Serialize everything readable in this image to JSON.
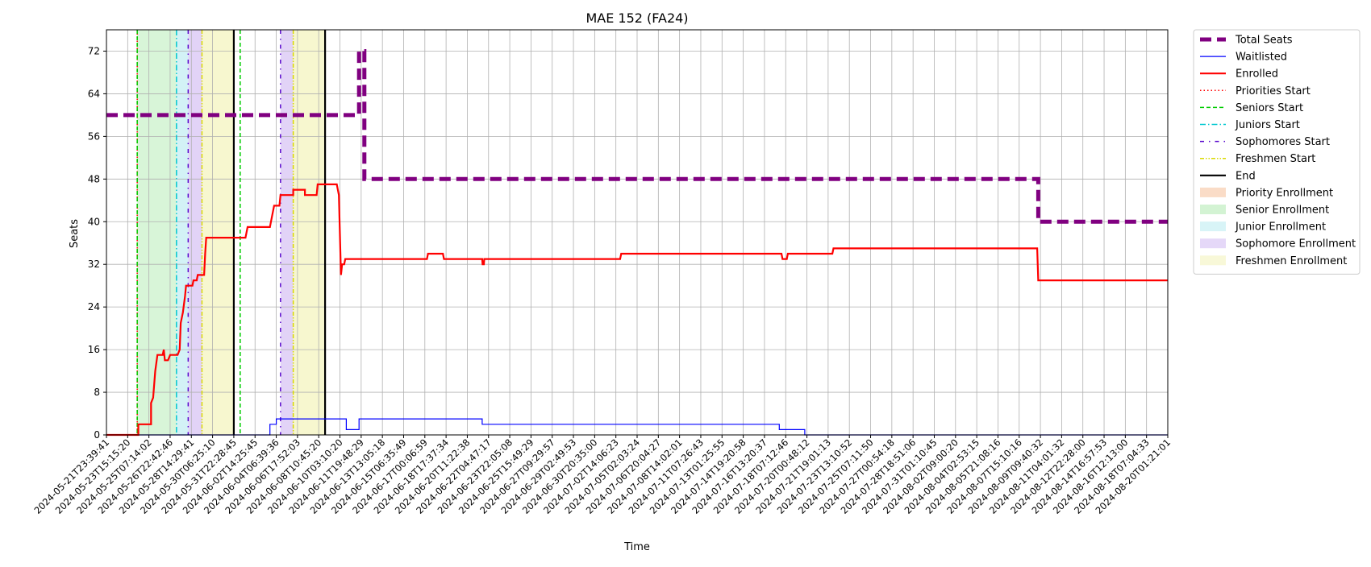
{
  "chart_data": {
    "type": "line",
    "title": "MAE 152 (FA24)",
    "xlabel": "Time",
    "ylabel": "Seats",
    "ylim": [
      0,
      76
    ],
    "yticks": [
      0,
      8,
      16,
      24,
      32,
      40,
      48,
      56,
      64,
      72
    ],
    "grid": true,
    "legend_position": "outside-right",
    "x_tick_labels": [
      "2024-05-21T23:39:41",
      "2024-05-23T15:15:20",
      "2024-05-25T07:14:02",
      "2024-05-26T22:42:46",
      "2024-05-28T14:29:41",
      "2024-05-30T06:25:10",
      "2024-05-31T22:28:45",
      "2024-06-02T14:25:45",
      "2024-06-04T06:39:36",
      "2024-06-06T17:52:03",
      "2024-06-08T10:45:20",
      "2024-06-10T03:10:20",
      "2024-06-11T19:48:29",
      "2024-06-13T13:05:18",
      "2024-06-15T06:35:49",
      "2024-06-17T00:06:59",
      "2024-06-18T17:37:34",
      "2024-06-20T11:22:38",
      "2024-06-22T04:47:17",
      "2024-06-23T22:05:08",
      "2024-06-25T15:49:29",
      "2024-06-27T09:29:57",
      "2024-06-29T02:49:53",
      "2024-06-30T20:35:00",
      "2024-07-02T14:06:23",
      "2024-07-05T02:03:24",
      "2024-07-06T20:04:27",
      "2024-07-08T14:02:01",
      "2024-07-11T07:26:43",
      "2024-07-13T01:25:55",
      "2024-07-14T19:20:58",
      "2024-07-16T13:20:37",
      "2024-07-18T07:12:46",
      "2024-07-20T00:48:12",
      "2024-07-21T19:01:13",
      "2024-07-23T13:10:52",
      "2024-07-25T07:11:50",
      "2024-07-27T00:54:18",
      "2024-07-28T18:51:06",
      "2024-07-31T01:10:45",
      "2024-08-02T09:00:20",
      "2024-08-04T02:53:15",
      "2024-08-05T21:08:16",
      "2024-08-07T15:10:16",
      "2024-08-09T09:40:32",
      "2024-08-11T04:01:32",
      "2024-08-12T22:28:00",
      "2024-08-14T16:57:53",
      "2024-08-16T12:13:00",
      "2024-08-18T07:04:33",
      "2024-08-20T01:21:01"
    ],
    "x_index_range": [
      0,
      50
    ],
    "series": [
      {
        "name": "Total Seats",
        "color": "#800080",
        "style": "dashed-thick",
        "points": [
          [
            0,
            60
          ],
          [
            11.9,
            60
          ],
          [
            11.9,
            72
          ],
          [
            12.15,
            72
          ],
          [
            12.15,
            48
          ],
          [
            43.9,
            48
          ],
          [
            43.9,
            40
          ],
          [
            50,
            40
          ]
        ]
      },
      {
        "name": "Waitlisted",
        "color": "#0000ff",
        "style": "solid-thin",
        "points": [
          [
            0,
            0
          ],
          [
            7.7,
            0
          ],
          [
            7.7,
            2
          ],
          [
            8.0,
            2
          ],
          [
            8.0,
            3
          ],
          [
            11.3,
            3
          ],
          [
            11.3,
            1
          ],
          [
            11.9,
            1
          ],
          [
            11.9,
            3
          ],
          [
            17.7,
            3
          ],
          [
            17.7,
            2
          ],
          [
            31.7,
            2
          ],
          [
            31.7,
            1
          ],
          [
            32.9,
            1
          ],
          [
            32.9,
            0
          ],
          [
            50,
            0
          ]
        ]
      },
      {
        "name": "Enrolled",
        "color": "#ff0000",
        "style": "solid",
        "points": [
          [
            0,
            0
          ],
          [
            1.5,
            0
          ],
          [
            1.5,
            2
          ],
          [
            2.1,
            2
          ],
          [
            2.1,
            6
          ],
          [
            2.2,
            7
          ],
          [
            2.3,
            12
          ],
          [
            2.4,
            15
          ],
          [
            2.65,
            15
          ],
          [
            2.7,
            16
          ],
          [
            2.75,
            14
          ],
          [
            2.9,
            14
          ],
          [
            3.0,
            15
          ],
          [
            3.35,
            15
          ],
          [
            3.45,
            16
          ],
          [
            3.5,
            21
          ],
          [
            3.6,
            23
          ],
          [
            3.7,
            26
          ],
          [
            3.75,
            28
          ],
          [
            4.05,
            28
          ],
          [
            4.1,
            29
          ],
          [
            4.25,
            29
          ],
          [
            4.3,
            30
          ],
          [
            4.6,
            30
          ],
          [
            4.65,
            34
          ],
          [
            4.7,
            37
          ],
          [
            6.45,
            37
          ],
          [
            6.55,
            37
          ],
          [
            6.65,
            39
          ],
          [
            7.7,
            39
          ],
          [
            7.8,
            41
          ],
          [
            7.9,
            43
          ],
          [
            8.15,
            43
          ],
          [
            8.2,
            45
          ],
          [
            8.8,
            45
          ],
          [
            8.8,
            46
          ],
          [
            9.35,
            46
          ],
          [
            9.35,
            45
          ],
          [
            9.9,
            45
          ],
          [
            9.95,
            47
          ],
          [
            10.85,
            47
          ],
          [
            10.95,
            45
          ],
          [
            11.05,
            30
          ],
          [
            11.1,
            32
          ],
          [
            11.2,
            32
          ],
          [
            11.25,
            33
          ],
          [
            15.1,
            33
          ],
          [
            15.15,
            34
          ],
          [
            15.85,
            34
          ],
          [
            15.9,
            33
          ],
          [
            17.7,
            33
          ],
          [
            17.72,
            32
          ],
          [
            17.78,
            32
          ],
          [
            17.8,
            33
          ],
          [
            24.2,
            33
          ],
          [
            24.25,
            34
          ],
          [
            31.8,
            34
          ],
          [
            31.85,
            33
          ],
          [
            32.05,
            33
          ],
          [
            32.1,
            34
          ],
          [
            34.2,
            34
          ],
          [
            34.25,
            35
          ],
          [
            43.85,
            35
          ],
          [
            43.9,
            29
          ],
          [
            50,
            29
          ]
        ]
      }
    ],
    "vertical_markers": [
      {
        "name": "Priorities Start",
        "color": "#ff0000",
        "style": "dotted",
        "x": [
          1.45
        ]
      },
      {
        "name": "Seniors Start",
        "color": "#00cc00",
        "style": "dashed",
        "x": [
          1.45,
          6.3
        ]
      },
      {
        "name": "Juniors Start",
        "color": "#00c8d0",
        "style": "dashdot",
        "x": [
          3.3
        ]
      },
      {
        "name": "Sophomores Start",
        "color": "#5a0acd",
        "style": "loose-dashdot",
        "x": [
          3.85,
          8.2
        ]
      },
      {
        "name": "Freshmen Start",
        "color": "#d9d900",
        "style": "dashdot-dot",
        "x": [
          4.5,
          8.8
        ]
      },
      {
        "name": "End",
        "color": "#000000",
        "style": "solid",
        "x": [
          6.0,
          10.3
        ]
      }
    ],
    "shaded_periods": [
      {
        "name": "Priority Enrollment",
        "color": "#f4b183",
        "opacity": 0.4,
        "ranges": []
      },
      {
        "name": "Senior Enrollment",
        "color": "#9ee59e",
        "opacity": 0.4,
        "ranges": [
          [
            1.45,
            3.3
          ]
        ]
      },
      {
        "name": "Junior Enrollment",
        "color": "#a8e6ee",
        "opacity": 0.5,
        "ranges": [
          [
            3.3,
            3.85
          ]
        ]
      },
      {
        "name": "Sophomore Enrollment",
        "color": "#c6a8f0",
        "opacity": 0.5,
        "ranges": [
          [
            3.85,
            4.5
          ],
          [
            8.2,
            8.8
          ]
        ]
      },
      {
        "name": "Freshmen Enrollment",
        "color": "#f0f0a8",
        "opacity": 0.55,
        "ranges": [
          [
            4.5,
            6.0
          ],
          [
            8.8,
            10.3
          ]
        ]
      }
    ],
    "legend": [
      {
        "label": "Total Seats",
        "kind": "line",
        "color": "#800080",
        "style": "dashed-thick"
      },
      {
        "label": "Waitlisted",
        "kind": "line",
        "color": "#0000ff",
        "style": "solid-thin"
      },
      {
        "label": "Enrolled",
        "kind": "line",
        "color": "#ff0000",
        "style": "solid"
      },
      {
        "label": "Priorities Start",
        "kind": "line",
        "color": "#ff0000",
        "style": "dotted"
      },
      {
        "label": "Seniors Start",
        "kind": "line",
        "color": "#00cc00",
        "style": "dashed"
      },
      {
        "label": "Juniors Start",
        "kind": "line",
        "color": "#00c8d0",
        "style": "dashdot"
      },
      {
        "label": "Sophomores Start",
        "kind": "line",
        "color": "#5a0acd",
        "style": "loose-dashdot"
      },
      {
        "label": "Freshmen Start",
        "kind": "line",
        "color": "#d9d900",
        "style": "dashdot-dot"
      },
      {
        "label": "End",
        "kind": "line",
        "color": "#000000",
        "style": "solid"
      },
      {
        "label": "Priority Enrollment",
        "kind": "patch",
        "color": "#f4b183"
      },
      {
        "label": "Senior Enrollment",
        "kind": "patch",
        "color": "#9ee59e"
      },
      {
        "label": "Junior Enrollment",
        "kind": "patch",
        "color": "#a8e6ee"
      },
      {
        "label": "Sophomore Enrollment",
        "kind": "patch",
        "color": "#c6a8f0"
      },
      {
        "label": "Freshmen Enrollment",
        "kind": "patch",
        "color": "#f0f0a8"
      }
    ]
  }
}
